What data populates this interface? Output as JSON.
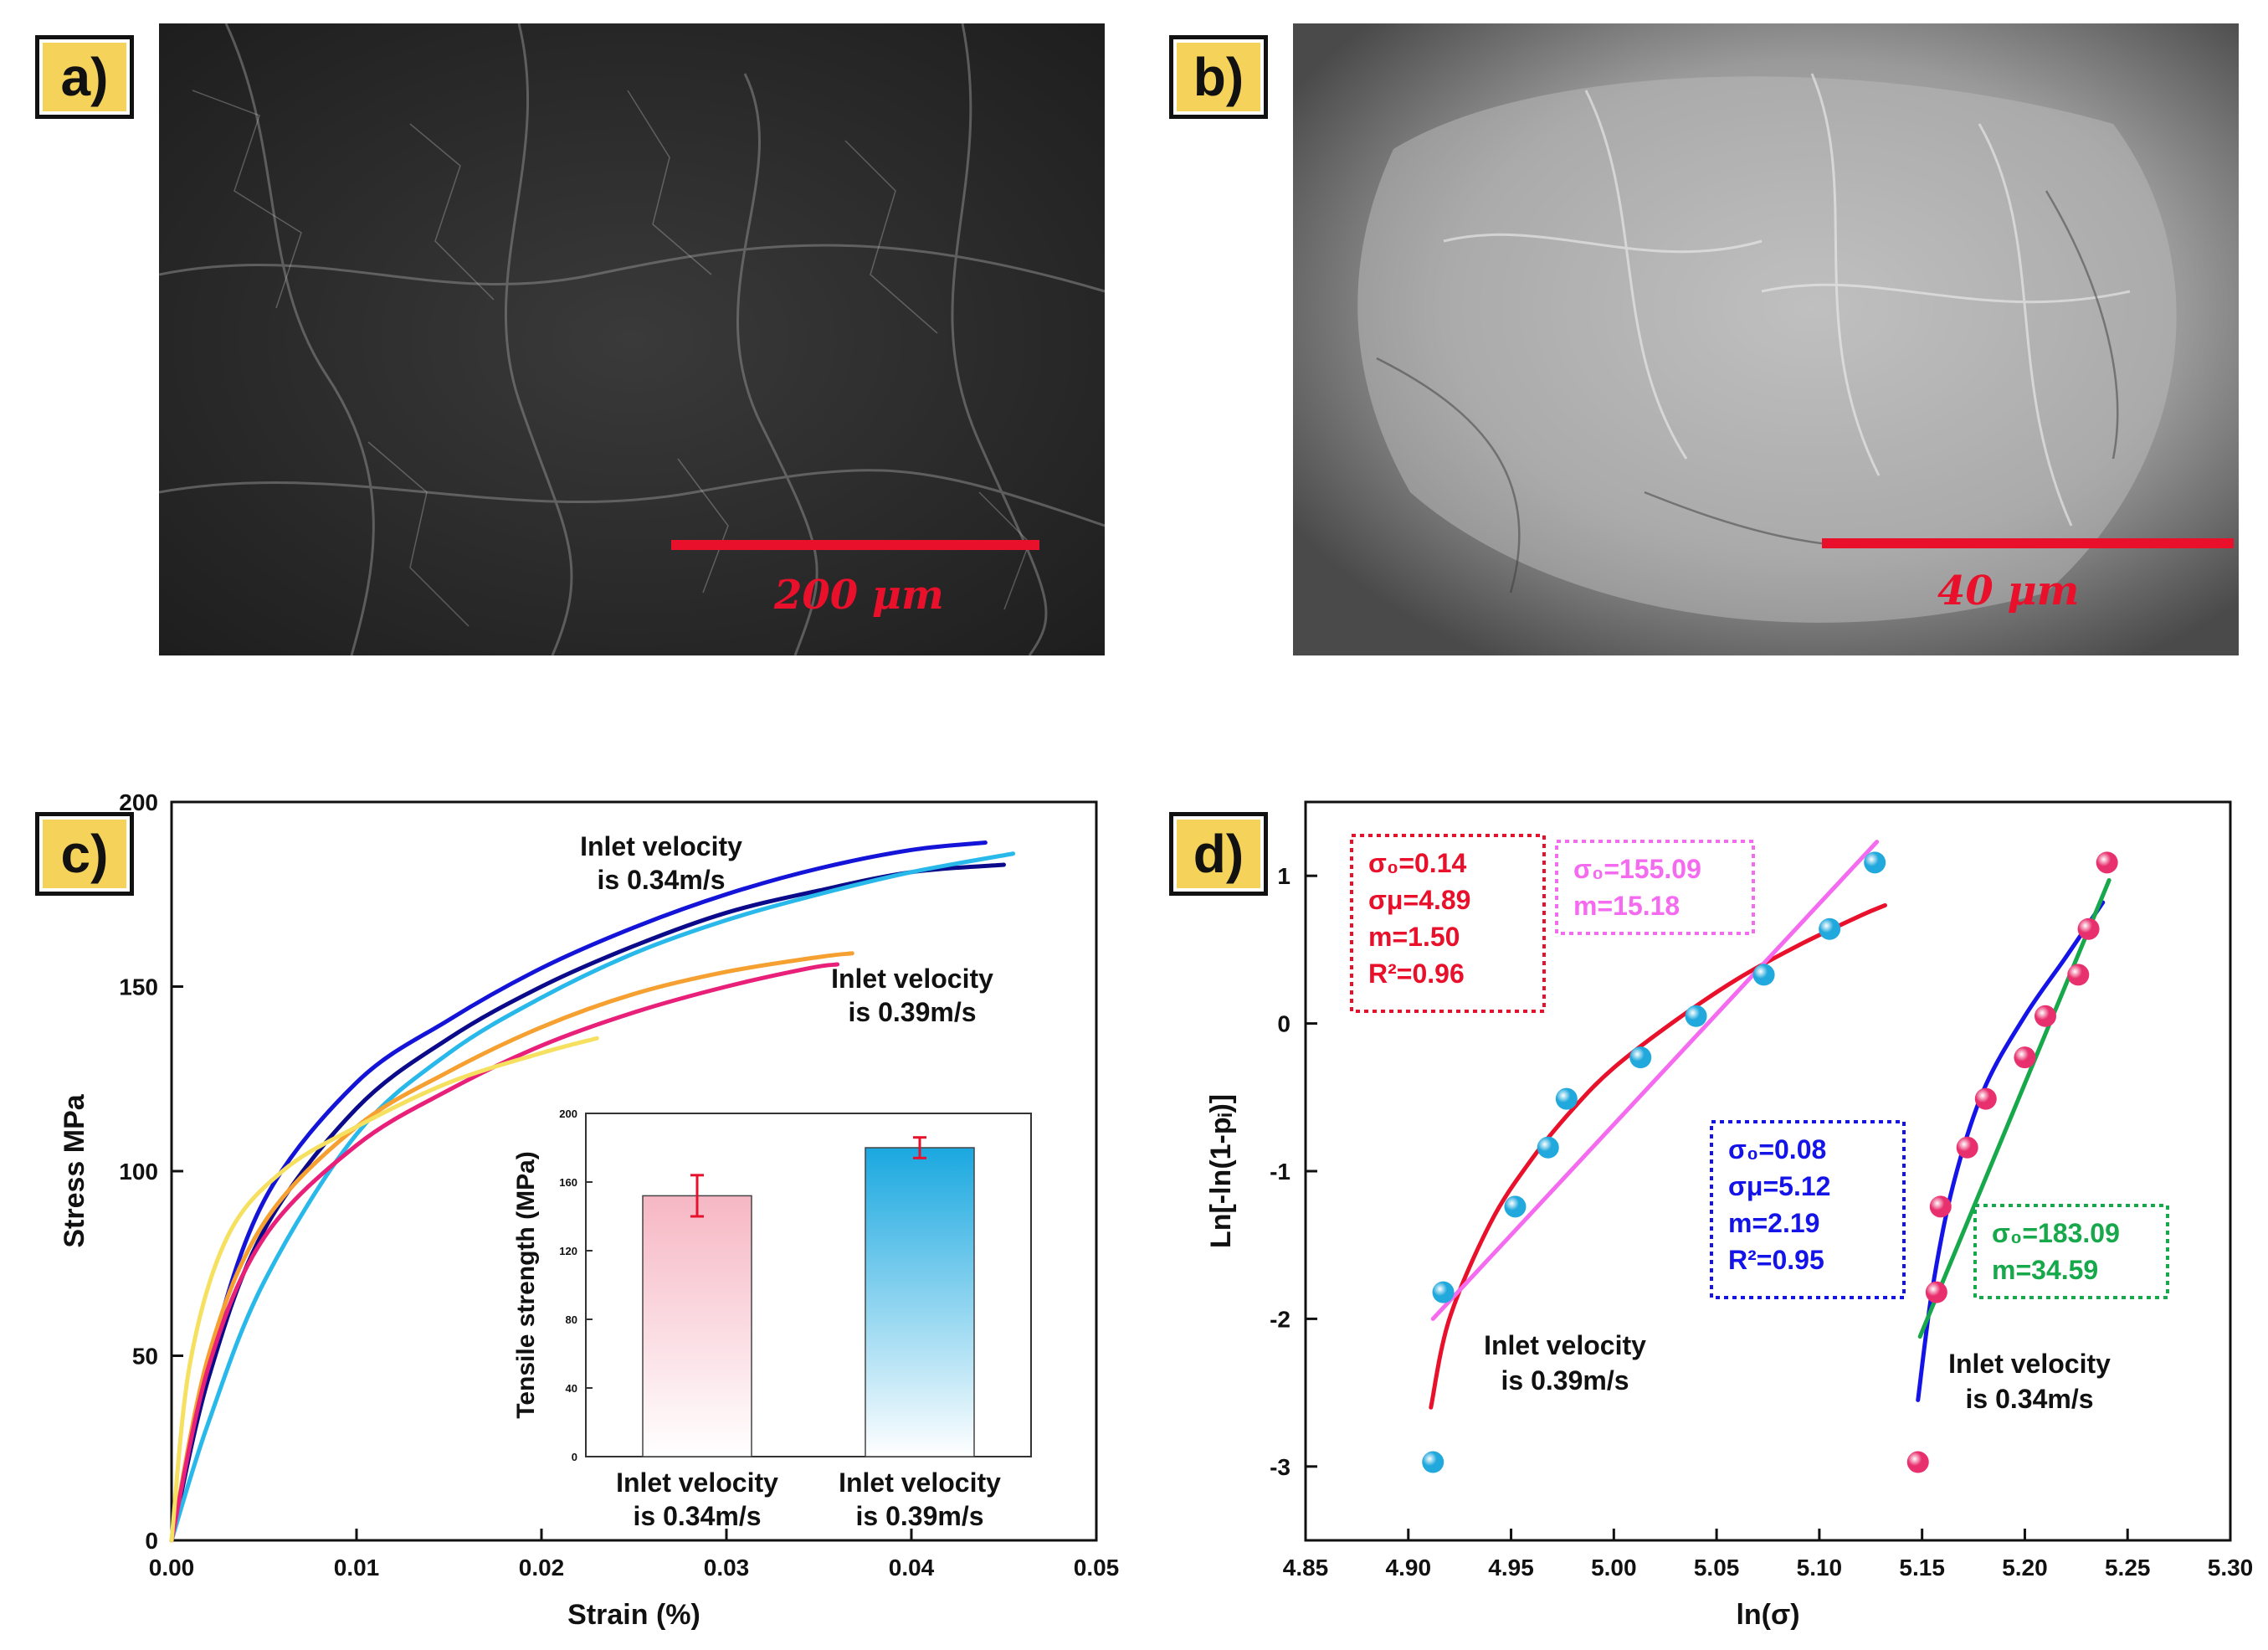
{
  "panels": {
    "a": {
      "label": "a)",
      "scalebar_text": "200 μm"
    },
    "b": {
      "label": "b)",
      "scalebar_text": "40 μm"
    },
    "c": {
      "label": "c)"
    },
    "d": {
      "label": "d)"
    }
  },
  "chart_data": [
    {
      "id": "c-main",
      "type": "line",
      "xlabel": "Strain (%)",
      "ylabel": "Stress MPa",
      "xlim": [
        0.0,
        0.05
      ],
      "ylim": [
        0,
        200
      ],
      "xticks": [
        "0.00",
        "0.01",
        "0.02",
        "0.03",
        "0.04",
        "0.05"
      ],
      "yticks": [
        "0",
        "50",
        "100",
        "150",
        "200"
      ],
      "annotations": [
        {
          "lines": [
            "Inlet velocity",
            "is 0.34m/s"
          ]
        },
        {
          "lines": [
            "Inlet velocity",
            "is 0.39m/s"
          ]
        }
      ],
      "series": [
        {
          "color": "#1414d8",
          "points": [
            [
              0,
              0
            ],
            [
              0.002,
              48
            ],
            [
              0.005,
              92
            ],
            [
              0.01,
              124
            ],
            [
              0.015,
              141
            ],
            [
              0.02,
              155
            ],
            [
              0.025,
              166
            ],
            [
              0.03,
              175
            ],
            [
              0.035,
              182
            ],
            [
              0.04,
              187
            ],
            [
              0.044,
              189
            ]
          ]
        },
        {
          "color": "#0a0a8a",
          "points": [
            [
              0,
              0
            ],
            [
              0.002,
              44
            ],
            [
              0.005,
              84
            ],
            [
              0.01,
              117
            ],
            [
              0.015,
              136
            ],
            [
              0.02,
              150
            ],
            [
              0.025,
              161
            ],
            [
              0.03,
              170
            ],
            [
              0.035,
              176
            ],
            [
              0.04,
              181
            ],
            [
              0.045,
              183
            ]
          ]
        },
        {
          "color": "#28b8ea",
          "points": [
            [
              0,
              0
            ],
            [
              0.002,
              32
            ],
            [
              0.005,
              70
            ],
            [
              0.01,
              110
            ],
            [
              0.015,
              132
            ],
            [
              0.02,
              147
            ],
            [
              0.025,
              159
            ],
            [
              0.03,
              168
            ],
            [
              0.035,
              175
            ],
            [
              0.04,
              181
            ],
            [
              0.0455,
              186
            ]
          ]
        },
        {
          "color": "#f5a030",
          "points": [
            [
              0,
              0
            ],
            [
              0.002,
              50
            ],
            [
              0.005,
              86
            ],
            [
              0.01,
              112
            ],
            [
              0.015,
              127
            ],
            [
              0.02,
              139
            ],
            [
              0.025,
              148
            ],
            [
              0.03,
              154
            ],
            [
              0.035,
              158
            ],
            [
              0.0368,
              159
            ]
          ]
        },
        {
          "color": "#e8207a",
          "points": [
            [
              0,
              0
            ],
            [
              0.002,
              47
            ],
            [
              0.005,
              82
            ],
            [
              0.01,
              107
            ],
            [
              0.015,
              122
            ],
            [
              0.02,
              134
            ],
            [
              0.025,
              143
            ],
            [
              0.03,
              150
            ],
            [
              0.0345,
              155
            ],
            [
              0.036,
              156
            ]
          ]
        },
        {
          "color": "#f6e060",
          "points": [
            [
              0,
              0
            ],
            [
              0.001,
              48
            ],
            [
              0.003,
              82
            ],
            [
              0.006,
              100
            ],
            [
              0.01,
              112
            ],
            [
              0.015,
              124
            ],
            [
              0.02,
              132
            ],
            [
              0.023,
              136
            ]
          ]
        }
      ]
    },
    {
      "id": "c-inset",
      "type": "bar",
      "ylabel": "Tensile strength (MPa)",
      "ylim": [
        0,
        200
      ],
      "yticks": [
        "0",
        "40",
        "80",
        "120",
        "160",
        "200"
      ],
      "categories": [
        [
          "Inlet velocity",
          "is 0.34m/s"
        ],
        [
          "Inlet velocity",
          "is 0.39m/s"
        ]
      ],
      "values": [
        152,
        180
      ],
      "errors": [
        12,
        6
      ],
      "colors": [
        "#f6b7c4",
        "#1aa8e0"
      ]
    },
    {
      "id": "d-main",
      "type": "scatter",
      "xlabel": "ln(σ)",
      "ylabel": "Ln[-ln(1-pᵢ)]",
      "xlim": [
        4.85,
        5.3
      ],
      "ylim": [
        -3.5,
        1.5
      ],
      "xticks": [
        "4.85",
        "4.90",
        "4.95",
        "5.00",
        "5.05",
        "5.10",
        "5.15",
        "5.20",
        "5.25",
        "5.30"
      ],
      "yticks": [
        "-3",
        "-2",
        "-1",
        "0",
        "1"
      ],
      "series": [
        {
          "color": "#21a8dc",
          "points": [
            [
              4.912,
              -2.97
            ],
            [
              4.917,
              -1.82
            ],
            [
              4.952,
              -1.24
            ],
            [
              4.968,
              -0.84
            ],
            [
              4.977,
              -0.51
            ],
            [
              5.013,
              -0.23
            ],
            [
              5.04,
              0.05
            ],
            [
              5.073,
              0.33
            ],
            [
              5.105,
              0.64
            ],
            [
              5.127,
              1.09
            ]
          ]
        },
        {
          "color": "#e8306e",
          "points": [
            [
              5.148,
              -2.97
            ],
            [
              5.157,
              -1.82
            ],
            [
              5.159,
              -1.24
            ],
            [
              5.172,
              -0.84
            ],
            [
              5.181,
              -0.51
            ],
            [
              5.2,
              -0.23
            ],
            [
              5.21,
              0.05
            ],
            [
              5.226,
              0.33
            ],
            [
              5.231,
              0.64
            ],
            [
              5.24,
              1.09
            ]
          ]
        }
      ],
      "fits": [
        {
          "color": "#e8102a",
          "kind": "curve",
          "points": [
            [
              4.911,
              -2.6
            ],
            [
              4.92,
              -2.0
            ],
            [
              4.94,
              -1.35
            ],
            [
              4.96,
              -0.92
            ],
            [
              4.98,
              -0.58
            ],
            [
              5.0,
              -0.3
            ],
            [
              5.03,
              0.02
            ],
            [
              5.06,
              0.3
            ],
            [
              5.09,
              0.53
            ],
            [
              5.12,
              0.73
            ],
            [
              5.132,
              0.8
            ]
          ]
        },
        {
          "color": "#f46bf0",
          "kind": "line",
          "points": [
            [
              4.912,
              -2.0
            ],
            [
              5.128,
              1.23
            ]
          ]
        },
        {
          "color": "#1414e8",
          "kind": "curve",
          "points": [
            [
              5.148,
              -2.55
            ],
            [
              5.155,
              -1.8
            ],
            [
              5.165,
              -1.1
            ],
            [
              5.18,
              -0.45
            ],
            [
              5.2,
              0.05
            ],
            [
              5.22,
              0.45
            ],
            [
              5.238,
              0.82
            ]
          ]
        },
        {
          "color": "#16a84a",
          "kind": "line",
          "points": [
            [
              5.149,
              -2.12
            ],
            [
              5.241,
              0.97
            ]
          ]
        }
      ],
      "boxes": [
        {
          "color": "#e8102a",
          "lines": [
            "σ₀=0.14",
            "σμ=4.89",
            "m=1.50",
            "R²=0.96"
          ]
        },
        {
          "color": "#f46bf0",
          "lines": [
            "σ₀=155.09",
            "m=15.18"
          ]
        },
        {
          "color": "#1414e8",
          "lines": [
            "σ₀=0.08",
            "σμ=5.12",
            "m=2.19",
            "R²=0.95"
          ]
        },
        {
          "color": "#16a84a",
          "lines": [
            "σ₀=183.09",
            "m=34.59"
          ]
        }
      ],
      "annotations": [
        {
          "lines": [
            "Inlet velocity",
            "is 0.39m/s"
          ]
        },
        {
          "lines": [
            "Inlet velocity",
            "is 0.34m/s"
          ]
        }
      ]
    }
  ]
}
